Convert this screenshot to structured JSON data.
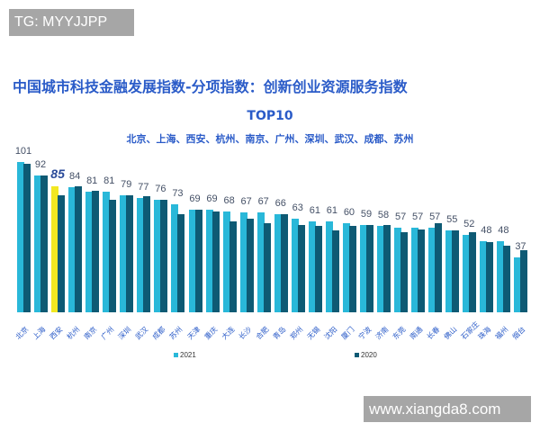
{
  "watermarks": {
    "top": "TG: MYYJJPP",
    "bottom": "www.xiangda8.com"
  },
  "chart_data": {
    "type": "bar",
    "title": "中国城市科技金融发展指数-分项指数：创新创业资源服务指数",
    "subtitle": "TOP10",
    "top10_list": "北京、上海、西安、杭州、南京、广州、深圳、武汉、成都、苏州",
    "xlabel": "",
    "ylabel": "",
    "grid": false,
    "legend_position": "bottom",
    "highlight": {
      "category": "西安",
      "color": "#f2e822"
    },
    "categories": [
      "北京",
      "上海",
      "西安",
      "杭州",
      "南京",
      "广州",
      "深圳",
      "武汉",
      "成都",
      "苏州",
      "天津",
      "重庆",
      "大连",
      "长沙",
      "合肥",
      "青岛",
      "郑州",
      "无锡",
      "沈阳",
      "厦门",
      "宁波",
      "济南",
      "东莞",
      "南通",
      "长春",
      "佛山",
      "石家庄",
      "珠海",
      "福州",
      "烟台"
    ],
    "series": [
      {
        "name": "2021",
        "color": "#29b8d9",
        "values": [
          101,
          92,
          85,
          84,
          81,
          81,
          79,
          77,
          76,
          73,
          69,
          69,
          68,
          67,
          67,
          66,
          63,
          61,
          61,
          60,
          59,
          58,
          57,
          57,
          57,
          55,
          52,
          48,
          48,
          37
        ]
      },
      {
        "name": "2020",
        "color": "#0e5a74",
        "values": [
          100,
          92,
          79,
          85,
          82,
          76,
          79,
          78,
          76,
          66,
          69,
          68,
          61,
          63,
          60,
          66,
          59,
          58,
          55,
          58,
          59,
          59,
          54,
          56,
          60,
          55,
          54,
          47,
          45,
          42
        ]
      }
    ],
    "ylim": [
      0,
      105
    ]
  }
}
